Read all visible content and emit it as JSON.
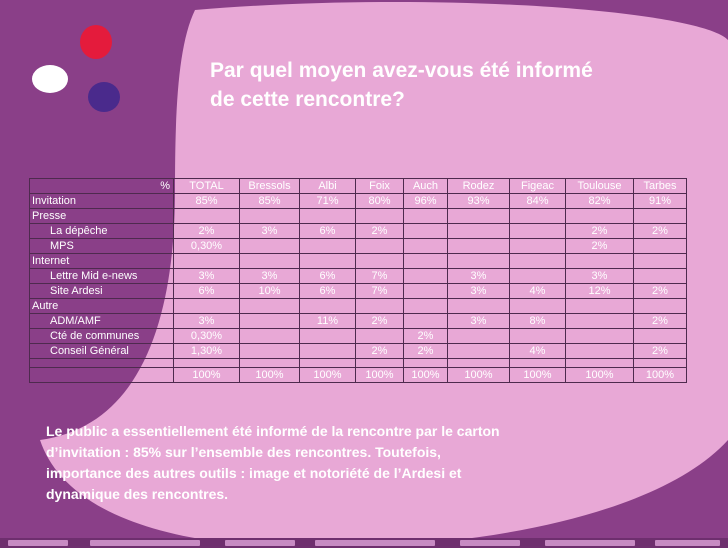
{
  "colors": {
    "background": "#8a3f88",
    "shape_light": "#e8a8d6",
    "logo_red": "#e41b3c",
    "logo_white": "#ffffff",
    "logo_blue": "#4a2a8c"
  },
  "title": {
    "line1": "Par quel moyen avez-vous été informé",
    "line2": "de cette rencontre?"
  },
  "table": {
    "header": [
      "%",
      "TOTAL",
      "Bressols",
      "Albi",
      "Foix",
      "Auch",
      "Rodez",
      "Figeac",
      "Toulouse",
      "Tarbes"
    ],
    "rows": [
      {
        "label": "Invitation",
        "values": [
          "85%",
          "85%",
          "71%",
          "80%",
          "96%",
          "93%",
          "84%",
          "82%",
          "91%"
        ]
      },
      {
        "label": "Presse",
        "values": [
          "",
          "",
          "",
          "",
          "",
          "",
          "",
          "",
          ""
        ]
      },
      {
        "label": "La dépêche",
        "values": [
          "2%",
          "3%",
          "6%",
          "2%",
          "",
          "",
          "",
          "2%",
          "2%"
        ]
      },
      {
        "label": "MPS",
        "values": [
          "0,30%",
          "",
          "",
          "",
          "",
          "",
          "",
          "2%",
          ""
        ]
      },
      {
        "label": "Internet",
        "values": [
          "",
          "",
          "",
          "",
          "",
          "",
          "",
          "",
          ""
        ]
      },
      {
        "label": "Lettre Mid e-news",
        "values": [
          "3%",
          "3%",
          "6%",
          "7%",
          "",
          "3%",
          "",
          "3%",
          ""
        ]
      },
      {
        "label": "Site Ardesi",
        "values": [
          "6%",
          "10%",
          "6%",
          "7%",
          "",
          "3%",
          "4%",
          "12%",
          "2%"
        ]
      },
      {
        "label": "Autre",
        "values": [
          "",
          "",
          "",
          "",
          "",
          "",
          "",
          "",
          ""
        ]
      },
      {
        "label": "ADM/AMF",
        "values": [
          "3%",
          "",
          "11%",
          "2%",
          "",
          "3%",
          "8%",
          "",
          "2%"
        ]
      },
      {
        "label": "Cté de communes",
        "values": [
          "0,30%",
          "",
          "",
          "",
          "2%",
          "",
          "",
          "",
          ""
        ]
      },
      {
        "label": "Conseil Général",
        "values": [
          "1,30%",
          "",
          "",
          "2%",
          "2%",
          "",
          "4%",
          "",
          "2%"
        ]
      }
    ],
    "total": {
      "label": "",
      "values": [
        "100%",
        "100%",
        "100%",
        "100%",
        "100%",
        "100%",
        "100%",
        "100%",
        "100%"
      ]
    }
  },
  "summary": {
    "line1": "Le public a essentiellement été informé de la rencontre par le carton",
    "line2": "d’invitation : 85% sur l’ensemble des rencontres. Toutefois,",
    "line3": "importance des autres outils : image et notoriété de l’Ardesi et",
    "line4": "dynamique des rencontres."
  }
}
